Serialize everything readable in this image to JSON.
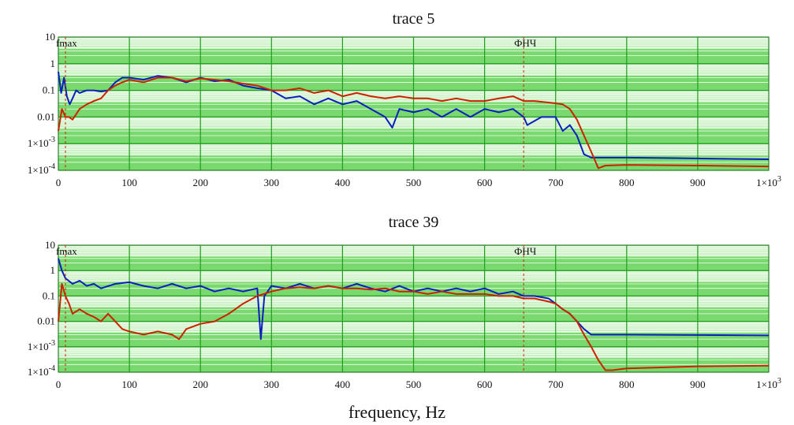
{
  "chart_data": [
    {
      "type": "line",
      "title": "trace 5",
      "xlabel": "",
      "ylabel": "",
      "y_scale": "log",
      "xlim": [
        0,
        1000
      ],
      "ylim": [
        0.0001,
        10
      ],
      "x_ticks": [
        0,
        100,
        200,
        300,
        400,
        500,
        600,
        700,
        800,
        900,
        1000
      ],
      "x_tick_labels": [
        "0",
        "100",
        "200",
        "300",
        "400",
        "500",
        "600",
        "700",
        "800",
        "900",
        "1×10^3"
      ],
      "y_ticks": [
        10,
        1,
        0.1,
        0.01,
        0.001,
        0.0001
      ],
      "y_tick_labels": [
        "10",
        "1",
        "0.1",
        "0.01",
        "1×10^-3",
        "1×10^-4"
      ],
      "grid": true,
      "background": "#7ad96e",
      "grid_color": "#1e9e1e",
      "markers": [
        {
          "x": 10,
          "label": "fmax",
          "color": "#cc2200"
        },
        {
          "x": 655,
          "label": "ФНЧ",
          "color": "#cc2200"
        }
      ],
      "series": [
        {
          "color": "#0a1fbf",
          "points": [
            [
              0,
              0.5
            ],
            [
              4,
              0.08
            ],
            [
              8,
              0.3
            ],
            [
              12,
              0.06
            ],
            [
              16,
              0.03
            ],
            [
              20,
              0.05
            ],
            [
              25,
              0.1
            ],
            [
              30,
              0.08
            ],
            [
              40,
              0.1
            ],
            [
              50,
              0.1
            ],
            [
              60,
              0.09
            ],
            [
              70,
              0.1
            ],
            [
              80,
              0.2
            ],
            [
              90,
              0.3
            ],
            [
              100,
              0.3
            ],
            [
              120,
              0.25
            ],
            [
              140,
              0.35
            ],
            [
              160,
              0.3
            ],
            [
              180,
              0.2
            ],
            [
              200,
              0.3
            ],
            [
              220,
              0.22
            ],
            [
              240,
              0.25
            ],
            [
              260,
              0.15
            ],
            [
              280,
              0.12
            ],
            [
              300,
              0.1
            ],
            [
              320,
              0.05
            ],
            [
              340,
              0.06
            ],
            [
              360,
              0.03
            ],
            [
              380,
              0.05
            ],
            [
              400,
              0.03
            ],
            [
              420,
              0.04
            ],
            [
              440,
              0.02
            ],
            [
              460,
              0.01
            ],
            [
              470,
              0.004
            ],
            [
              480,
              0.02
            ],
            [
              500,
              0.015
            ],
            [
              520,
              0.02
            ],
            [
              540,
              0.01
            ],
            [
              560,
              0.02
            ],
            [
              580,
              0.01
            ],
            [
              600,
              0.02
            ],
            [
              620,
              0.015
            ],
            [
              640,
              0.02
            ],
            [
              655,
              0.01
            ],
            [
              660,
              0.005
            ],
            [
              680,
              0.01
            ],
            [
              700,
              0.01
            ],
            [
              710,
              0.003
            ],
            [
              720,
              0.005
            ],
            [
              730,
              0.002
            ],
            [
              740,
              0.0004
            ],
            [
              750,
              0.0003
            ],
            [
              770,
              0.0003
            ],
            [
              800,
              0.0003
            ],
            [
              900,
              0.00028
            ],
            [
              1000,
              0.00026
            ]
          ]
        },
        {
          "color": "#cc2200",
          "points": [
            [
              0,
              0.003
            ],
            [
              5,
              0.02
            ],
            [
              10,
              0.01
            ],
            [
              15,
              0.01
            ],
            [
              20,
              0.008
            ],
            [
              30,
              0.02
            ],
            [
              40,
              0.03
            ],
            [
              50,
              0.04
            ],
            [
              60,
              0.05
            ],
            [
              70,
              0.1
            ],
            [
              80,
              0.15
            ],
            [
              90,
              0.2
            ],
            [
              100,
              0.25
            ],
            [
              120,
              0.2
            ],
            [
              140,
              0.3
            ],
            [
              160,
              0.3
            ],
            [
              180,
              0.22
            ],
            [
              200,
              0.28
            ],
            [
              220,
              0.25
            ],
            [
              240,
              0.22
            ],
            [
              260,
              0.18
            ],
            [
              280,
              0.15
            ],
            [
              300,
              0.1
            ],
            [
              320,
              0.1
            ],
            [
              340,
              0.12
            ],
            [
              360,
              0.08
            ],
            [
              380,
              0.1
            ],
            [
              400,
              0.06
            ],
            [
              420,
              0.08
            ],
            [
              440,
              0.06
            ],
            [
              460,
              0.05
            ],
            [
              480,
              0.06
            ],
            [
              500,
              0.05
            ],
            [
              520,
              0.05
            ],
            [
              540,
              0.04
            ],
            [
              560,
              0.05
            ],
            [
              580,
              0.04
            ],
            [
              600,
              0.04
            ],
            [
              620,
              0.05
            ],
            [
              640,
              0.06
            ],
            [
              655,
              0.04
            ],
            [
              670,
              0.04
            ],
            [
              690,
              0.035
            ],
            [
              710,
              0.03
            ],
            [
              720,
              0.02
            ],
            [
              730,
              0.008
            ],
            [
              740,
              0.002
            ],
            [
              750,
              0.0005
            ],
            [
              760,
              0.00012
            ],
            [
              770,
              0.00015
            ],
            [
              800,
              0.00016
            ],
            [
              900,
              0.00015
            ],
            [
              1000,
              0.00014
            ]
          ]
        }
      ]
    },
    {
      "type": "line",
      "title": "trace 39",
      "xlabel": "frequency, Hz",
      "ylabel": "",
      "y_scale": "log",
      "xlim": [
        0,
        1000
      ],
      "ylim": [
        0.0001,
        10
      ],
      "x_ticks": [
        0,
        100,
        200,
        300,
        400,
        500,
        600,
        700,
        800,
        900,
        1000
      ],
      "x_tick_labels": [
        "0",
        "100",
        "200",
        "300",
        "400",
        "500",
        "600",
        "700",
        "800",
        "900",
        "1×10^3"
      ],
      "y_ticks": [
        10,
        1,
        0.1,
        0.01,
        0.001,
        0.0001
      ],
      "y_tick_labels": [
        "10",
        "1",
        "0.1",
        "0.01",
        "1×10^-3",
        "1×10^-4"
      ],
      "grid": true,
      "background": "#7ad96e",
      "grid_color": "#1e9e1e",
      "markers": [
        {
          "x": 10,
          "label": "fmax",
          "color": "#cc2200"
        },
        {
          "x": 655,
          "label": "ФНЧ",
          "color": "#cc2200"
        }
      ],
      "series": [
        {
          "color": "#0a1fbf",
          "points": [
            [
              0,
              3
            ],
            [
              5,
              1
            ],
            [
              10,
              0.5
            ],
            [
              20,
              0.3
            ],
            [
              30,
              0.4
            ],
            [
              40,
              0.25
            ],
            [
              50,
              0.3
            ],
            [
              60,
              0.2
            ],
            [
              80,
              0.3
            ],
            [
              100,
              0.35
            ],
            [
              120,
              0.25
            ],
            [
              140,
              0.2
            ],
            [
              160,
              0.3
            ],
            [
              180,
              0.2
            ],
            [
              200,
              0.25
            ],
            [
              220,
              0.15
            ],
            [
              240,
              0.2
            ],
            [
              260,
              0.15
            ],
            [
              280,
              0.2
            ],
            [
              285,
              0.002
            ],
            [
              290,
              0.1
            ],
            [
              300,
              0.25
            ],
            [
              320,
              0.2
            ],
            [
              340,
              0.3
            ],
            [
              360,
              0.2
            ],
            [
              380,
              0.25
            ],
            [
              400,
              0.2
            ],
            [
              420,
              0.3
            ],
            [
              440,
              0.2
            ],
            [
              460,
              0.15
            ],
            [
              480,
              0.25
            ],
            [
              500,
              0.15
            ],
            [
              520,
              0.2
            ],
            [
              540,
              0.15
            ],
            [
              560,
              0.2
            ],
            [
              580,
              0.15
            ],
            [
              600,
              0.2
            ],
            [
              620,
              0.12
            ],
            [
              640,
              0.15
            ],
            [
              655,
              0.1
            ],
            [
              670,
              0.1
            ],
            [
              690,
              0.08
            ],
            [
              700,
              0.05
            ],
            [
              710,
              0.03
            ],
            [
              720,
              0.02
            ],
            [
              730,
              0.01
            ],
            [
              740,
              0.005
            ],
            [
              750,
              0.003
            ],
            [
              770,
              0.003
            ],
            [
              800,
              0.003
            ],
            [
              900,
              0.0029
            ],
            [
              1000,
              0.0028
            ]
          ]
        },
        {
          "color": "#cc2200",
          "points": [
            [
              0,
              0.01
            ],
            [
              5,
              0.3
            ],
            [
              10,
              0.1
            ],
            [
              15,
              0.05
            ],
            [
              20,
              0.02
            ],
            [
              30,
              0.03
            ],
            [
              40,
              0.02
            ],
            [
              50,
              0.015
            ],
            [
              60,
              0.01
            ],
            [
              70,
              0.02
            ],
            [
              80,
              0.01
            ],
            [
              90,
              0.005
            ],
            [
              100,
              0.004
            ],
            [
              120,
              0.003
            ],
            [
              140,
              0.004
            ],
            [
              160,
              0.003
            ],
            [
              170,
              0.002
            ],
            [
              180,
              0.005
            ],
            [
              200,
              0.008
            ],
            [
              220,
              0.01
            ],
            [
              240,
              0.02
            ],
            [
              260,
              0.05
            ],
            [
              280,
              0.1
            ],
            [
              300,
              0.15
            ],
            [
              320,
              0.2
            ],
            [
              340,
              0.22
            ],
            [
              360,
              0.2
            ],
            [
              380,
              0.25
            ],
            [
              400,
              0.2
            ],
            [
              420,
              0.2
            ],
            [
              440,
              0.18
            ],
            [
              460,
              0.2
            ],
            [
              480,
              0.15
            ],
            [
              500,
              0.15
            ],
            [
              520,
              0.12
            ],
            [
              540,
              0.15
            ],
            [
              560,
              0.12
            ],
            [
              580,
              0.12
            ],
            [
              600,
              0.12
            ],
            [
              620,
              0.1
            ],
            [
              640,
              0.1
            ],
            [
              655,
              0.08
            ],
            [
              670,
              0.08
            ],
            [
              690,
              0.06
            ],
            [
              700,
              0.05
            ],
            [
              710,
              0.03
            ],
            [
              720,
              0.02
            ],
            [
              730,
              0.01
            ],
            [
              740,
              0.003
            ],
            [
              750,
              0.001
            ],
            [
              760,
              0.0003
            ],
            [
              770,
              0.00012
            ],
            [
              780,
              0.00012
            ],
            [
              800,
              0.00014
            ],
            [
              900,
              0.00017
            ],
            [
              1000,
              0.00018
            ]
          ]
        }
      ]
    }
  ]
}
